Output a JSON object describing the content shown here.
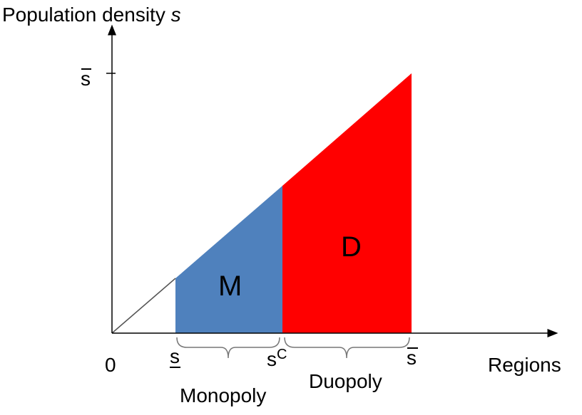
{
  "axes": {
    "y_label": {
      "text": "Population density",
      "variable": "s"
    },
    "x_label": "Regions",
    "origin": "0",
    "y_tick": "s"
  },
  "x_ticks": [
    {
      "label": "s"
    },
    {
      "label": "s",
      "superscript": "C"
    },
    {
      "label": "s"
    }
  ],
  "regions": [
    {
      "label": "M"
    },
    {
      "label": "D"
    }
  ],
  "brackets": [
    {
      "label": "Monopoly"
    },
    {
      "label": "Duopoly"
    }
  ]
}
